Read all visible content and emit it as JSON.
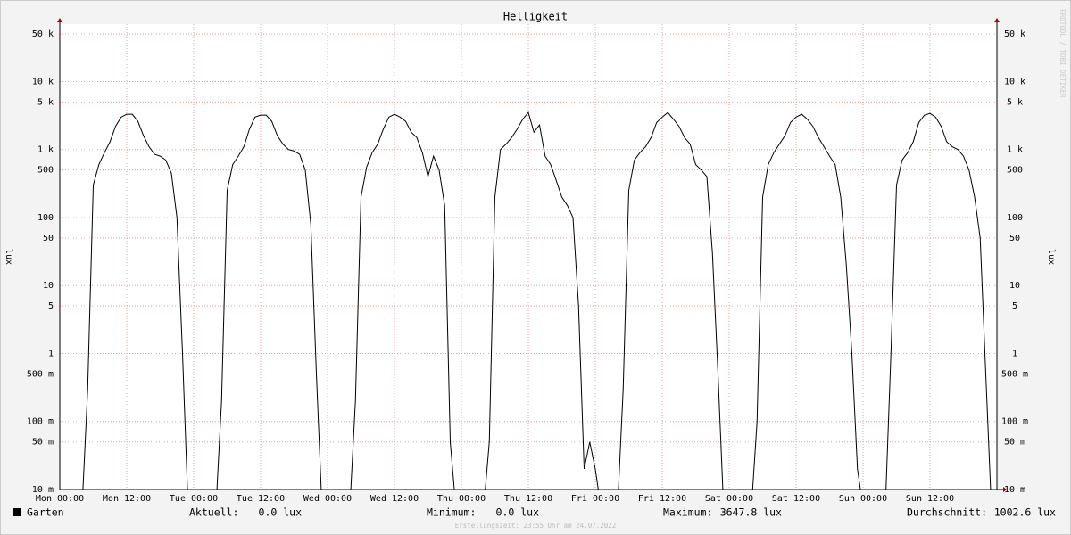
{
  "chart_data": {
    "type": "line",
    "title": "Helligkeit",
    "y_label": "lux",
    "y2_label": "lux",
    "watermark": "RRDTOOL / TOBI OETIKER",
    "footer": "Erstellungszeit: 23:55 Uhr am 24.07.2022",
    "log_y": true,
    "grid": true,
    "xlim": [
      0,
      168
    ],
    "xticks": [
      {
        "value": 0,
        "label": "Mon 00:00"
      },
      {
        "value": 12,
        "label": "Mon 12:00"
      },
      {
        "value": 24,
        "label": "Tue 00:00"
      },
      {
        "value": 36,
        "label": "Tue 12:00"
      },
      {
        "value": 48,
        "label": "Wed 00:00"
      },
      {
        "value": 60,
        "label": "Wed 12:00"
      },
      {
        "value": 72,
        "label": "Thu 00:00"
      },
      {
        "value": 84,
        "label": "Thu 12:00"
      },
      {
        "value": 96,
        "label": "Fri 00:00"
      },
      {
        "value": 108,
        "label": "Fri 12:00"
      },
      {
        "value": 120,
        "label": "Sat 00:00"
      },
      {
        "value": 132,
        "label": "Sat 12:00"
      },
      {
        "value": 144,
        "label": "Sun 00:00"
      },
      {
        "value": 156,
        "label": "Sun 12:00"
      }
    ],
    "ylim": [
      0.01,
      70000
    ],
    "yticks": [
      {
        "value": 0.01,
        "label": "10 m"
      },
      {
        "value": 0.05,
        "label": "50 m"
      },
      {
        "value": 0.1,
        "label": "100 m"
      },
      {
        "value": 0.5,
        "label": "500 m"
      },
      1,
      5,
      10,
      50,
      100,
      500,
      {
        "value": 1000,
        "label": "1 k"
      },
      {
        "value": 5000,
        "label": "5 k"
      },
      {
        "value": 10000,
        "label": "10 k"
      },
      {
        "value": 50000,
        "label": "50 k"
      }
    ],
    "x": [
      0,
      1,
      2,
      3,
      4,
      5,
      6,
      7,
      8,
      9,
      10,
      11,
      12,
      13,
      14,
      15,
      16,
      17,
      18,
      19,
      20,
      21,
      22,
      23,
      24,
      25,
      26,
      27,
      28,
      29,
      30,
      31,
      32,
      33,
      34,
      35,
      36,
      37,
      38,
      39,
      40,
      41,
      42,
      43,
      44,
      45,
      46,
      47,
      48,
      49,
      50,
      51,
      52,
      53,
      54,
      55,
      56,
      57,
      58,
      59,
      60,
      61,
      62,
      63,
      64,
      65,
      66,
      67,
      68,
      69,
      70,
      71,
      72,
      73,
      74,
      75,
      76,
      77,
      78,
      79,
      80,
      81,
      82,
      83,
      84,
      85,
      86,
      87,
      88,
      89,
      90,
      91,
      92,
      93,
      94,
      95,
      96,
      97,
      98,
      99,
      100,
      101,
      102,
      103,
      104,
      105,
      106,
      107,
      108,
      109,
      110,
      111,
      112,
      113,
      114,
      115,
      116,
      117,
      118,
      119,
      120,
      121,
      122,
      123,
      124,
      125,
      126,
      127,
      128,
      129,
      130,
      131,
      132,
      133,
      134,
      135,
      136,
      137,
      138,
      139,
      140,
      141,
      142,
      143,
      144,
      145,
      146,
      147,
      148,
      149,
      150,
      151,
      152,
      153,
      154,
      155,
      156,
      157,
      158,
      159,
      160,
      161,
      162,
      163,
      164,
      165,
      166,
      167
    ],
    "series": [
      {
        "name": "Garten",
        "color": "#000000",
        "values": [
          0,
          0,
          0,
          0,
          0,
          0.3,
          300,
          600,
          900,
          1300,
          2200,
          3000,
          3300,
          3300,
          2600,
          1600,
          1100,
          850,
          800,
          700,
          450,
          100,
          1,
          0,
          0,
          0,
          0,
          0,
          0,
          0.2,
          250,
          600,
          800,
          1100,
          2000,
          3000,
          3200,
          3200,
          2600,
          1600,
          1200,
          1000,
          950,
          850,
          500,
          80,
          0.5,
          0,
          0,
          0,
          0,
          0,
          0,
          0.2,
          200,
          550,
          900,
          1200,
          2000,
          3000,
          3300,
          3000,
          2600,
          1800,
          1500,
          900,
          400,
          800,
          500,
          150,
          0.05,
          0,
          0,
          0,
          0,
          0,
          0,
          0.05,
          200,
          1000,
          1200,
          1500,
          2000,
          2800,
          3500,
          1800,
          2300,
          800,
          600,
          350,
          200,
          150,
          100,
          5,
          0.02,
          0.05,
          0.02,
          0,
          0,
          0,
          0,
          0.3,
          250,
          700,
          900,
          1100,
          1500,
          2500,
          3000,
          3500,
          2800,
          2200,
          1500,
          1200,
          600,
          500,
          400,
          30,
          0.5,
          0,
          0,
          0,
          0,
          0,
          0,
          0.1,
          200,
          600,
          900,
          1200,
          1600,
          2500,
          3000,
          3300,
          2800,
          2200,
          1500,
          1100,
          800,
          600,
          200,
          20,
          1,
          0.02,
          0,
          0,
          0,
          0,
          0,
          1,
          300,
          700,
          900,
          1300,
          2500,
          3200,
          3400,
          3000,
          2200,
          1300,
          1100,
          1000,
          800,
          500,
          200,
          50,
          0.5,
          0
        ]
      }
    ],
    "stats": [
      {
        "label": "Aktuell:",
        "value": "0.0 lux"
      },
      {
        "label": "Minimum:",
        "value": "0.0 lux"
      },
      {
        "label": "Maximum:",
        "value": "3647.8 lux"
      },
      {
        "label": "Durchschnitt:",
        "value": "1002.6 lux"
      }
    ]
  }
}
